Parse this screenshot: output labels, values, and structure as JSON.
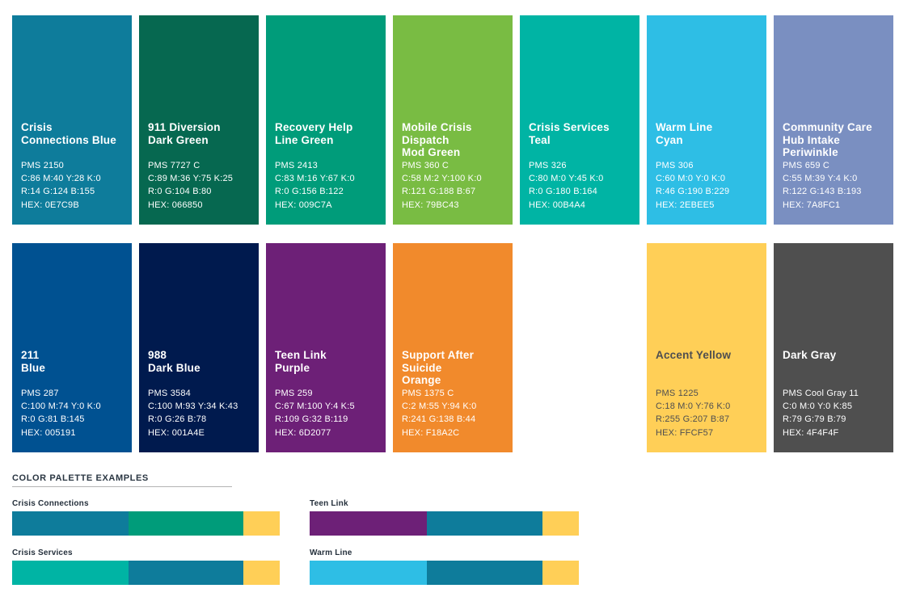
{
  "swatches": {
    "cards": [
      {
        "row": 1,
        "col": 1,
        "name": "Crisis\nConnections Blue",
        "pms": "PMS 2150",
        "cmyk": "C:86 M:40 Y:28 K:0",
        "rgb": "R:14 G:124 B:155",
        "hex_text": "HEX: 0E7C9B",
        "color": "#0E7C9B",
        "text_color": "#FFFFFF"
      },
      {
        "row": 1,
        "col": 2,
        "name": "911 Diversion\nDark Green",
        "pms": "PMS 7727 C",
        "cmyk": "C:89 M:36 Y:75 K:25",
        "rgb": "R:0 G:104 B:80",
        "hex_text": "HEX: 066850",
        "color": "#066850",
        "text_color": "#FFFFFF"
      },
      {
        "row": 1,
        "col": 3,
        "name": "Recovery Help\nLine Green",
        "pms": "PMS 2413",
        "cmyk": "C:83 M:16 Y:67 K:0",
        "rgb": "R:0 G:156 B:122",
        "hex_text": "HEX: 009C7A",
        "color": "#009C7A",
        "text_color": "#FFFFFF"
      },
      {
        "row": 1,
        "col": 4,
        "name": "Mobile Crisis\nDispatch\nMod Green",
        "pms": "PMS 360 C",
        "cmyk": "C:58 M:2 Y:100 K:0",
        "rgb": "R:121 G:188 B:67",
        "hex_text": "HEX: 79BC43",
        "color": "#79BC43",
        "text_color": "#FFFFFF"
      },
      {
        "row": 1,
        "col": 5,
        "name": "Crisis Services\nTeal",
        "pms": "PMS 326",
        "cmyk": "C:80 M:0 Y:45 K:0",
        "rgb": "R:0 G:180 B:164",
        "hex_text": "HEX: 00B4A4",
        "color": "#00B4A4",
        "text_color": "#FFFFFF"
      },
      {
        "row": 1,
        "col": 6,
        "name": "Warm Line\nCyan",
        "pms": "PMS 306",
        "cmyk": "C:60 M:0 Y:0 K:0",
        "rgb": "R:46 G:190 B:229",
        "hex_text": "HEX: 2EBEE5",
        "color": "#2EBEE5",
        "text_color": "#FFFFFF"
      },
      {
        "row": 1,
        "col": 7,
        "name": "Community Care\nHub Intake\nPeriwinkle",
        "pms": "PMS 659 C",
        "cmyk": "C:55 M:39 Y:4 K:0",
        "rgb": "R:122 G:143 B:193",
        "hex_text": "HEX: 7A8FC1",
        "color": "#7A8FC1",
        "text_color": "#FFFFFF"
      },
      {
        "row": 2,
        "col": 1,
        "name": "211\nBlue",
        "pms": "PMS 287",
        "cmyk": "C:100 M:74 Y:0 K:0",
        "rgb": "R:0 G:81 B:145",
        "hex_text": "HEX: 005191",
        "color": "#005191",
        "text_color": "#FFFFFF"
      },
      {
        "row": 2,
        "col": 2,
        "name": "988\nDark Blue",
        "pms": "PMS 3584",
        "cmyk": "C:100 M:93 Y:34 K:43",
        "rgb": "R:0 G:26 B:78",
        "hex_text": "HEX: 001A4E",
        "color": "#001A4E",
        "text_color": "#FFFFFF"
      },
      {
        "row": 2,
        "col": 3,
        "name": "Teen Link\nPurple",
        "pms": "PMS 259",
        "cmyk": "C:67 M:100 Y:4 K:5",
        "rgb": "R:109 G:32 B:119",
        "hex_text": "HEX: 6D2077",
        "color": "#6D2077",
        "text_color": "#FFFFFF"
      },
      {
        "row": 2,
        "col": 4,
        "name": "Support After\nSuicide\nOrange",
        "pms": "PMS 1375 C",
        "cmyk": "C:2 M:55 Y:94 K:0",
        "rgb": "R:241 G:138 B:44",
        "hex_text": "HEX: F18A2C",
        "color": "#F18A2C",
        "text_color": "#FFFFFF"
      },
      {
        "row": 2,
        "col": 6,
        "name": "Accent Yellow",
        "pms": "PMS 1225",
        "cmyk": "C:18 M:0 Y:76 K:0",
        "rgb": "R:255 G:207 B:87",
        "hex_text": "HEX: FFCF57",
        "color": "#FFCF57",
        "text_color": "#4E4E50"
      },
      {
        "row": 2,
        "col": 7,
        "name": "Dark Gray",
        "pms": "PMS Cool Gray 11",
        "cmyk": "C:0 M:0 Y:0 K:85",
        "rgb": "R:79 G:79 B:79",
        "hex_text": "HEX: 4F4F4F",
        "color": "#4F4F4F",
        "text_color": "#FFFFFF"
      }
    ]
  },
  "examples": {
    "heading": "COLOR PALETTE EXAMPLES",
    "items": [
      {
        "label": "Crisis Connections",
        "col": 1,
        "row": 1,
        "segments": [
          "#0E7C9B",
          "#009C7A",
          "#FFCF57"
        ]
      },
      {
        "label": "Teen Link",
        "col": 2,
        "row": 1,
        "segments": [
          "#6D2077",
          "#0E7C9B",
          "#FFCF57"
        ]
      },
      {
        "label": "Crisis Services",
        "col": 1,
        "row": 2,
        "segments": [
          "#00B4A4",
          "#0E7C9B",
          "#FFCF57"
        ]
      },
      {
        "label": "Warm Line",
        "col": 2,
        "row": 2,
        "segments": [
          "#2EBEE5",
          "#0E7C9B",
          "#FFCF57"
        ]
      }
    ]
  }
}
